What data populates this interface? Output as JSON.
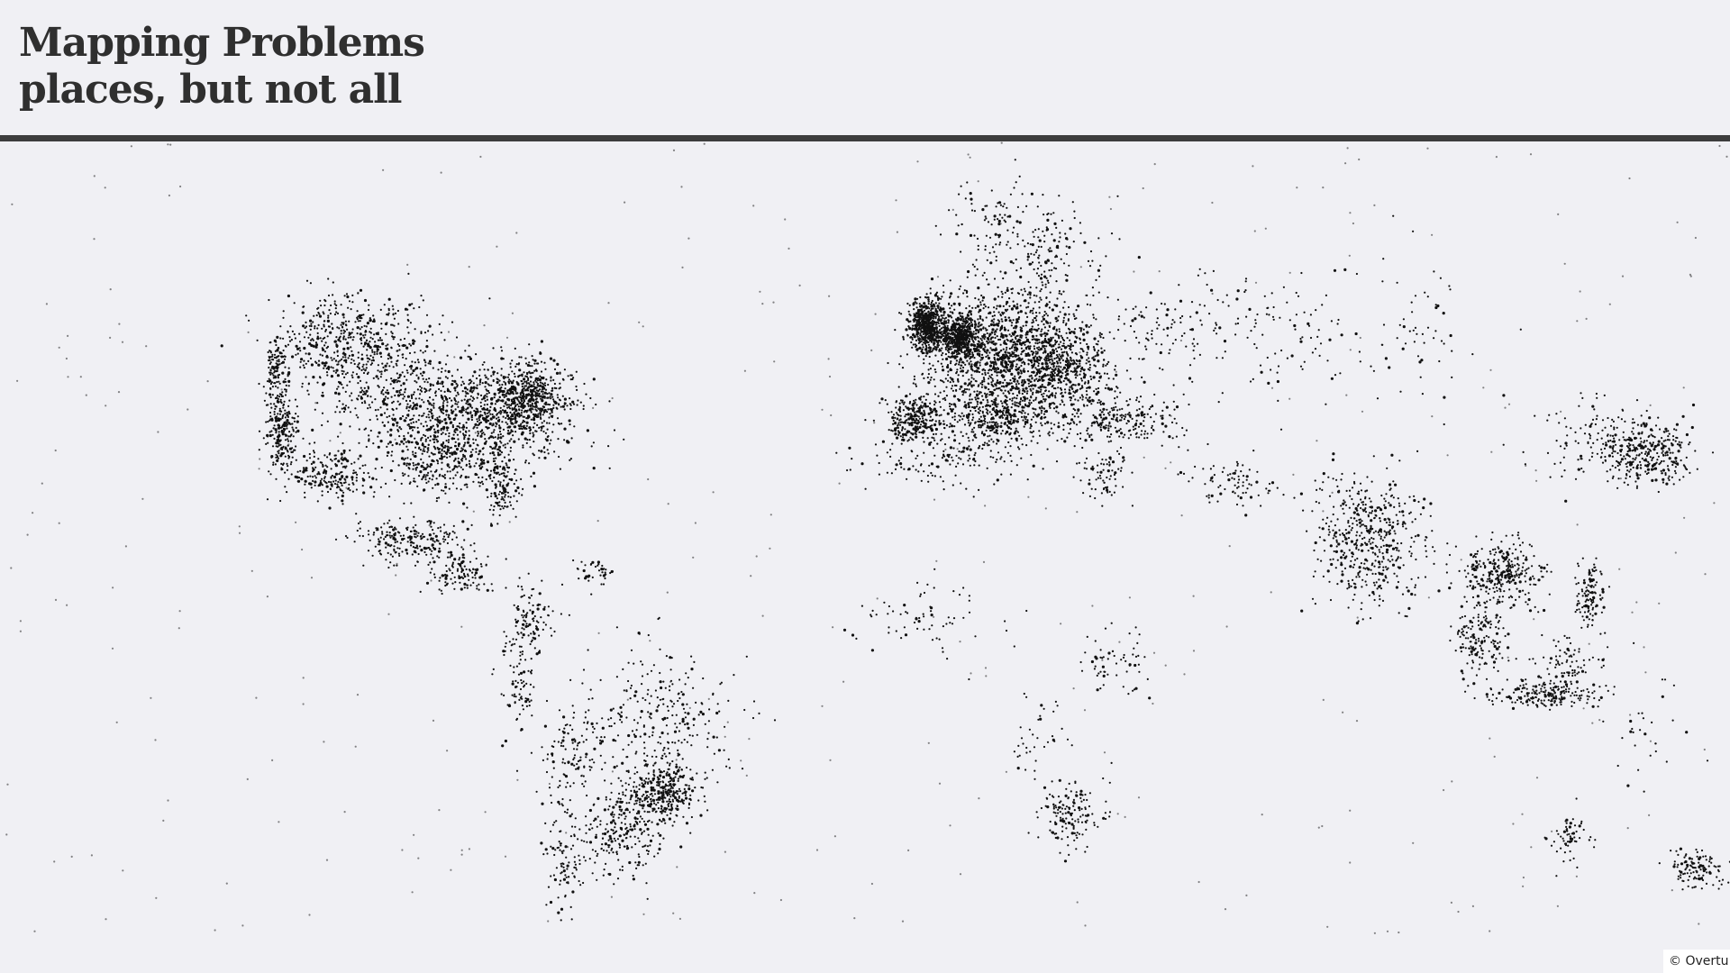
{
  "header": {
    "title_line1": "Mapping Problems",
    "title_line2": "places, but not all"
  },
  "map": {
    "attribution": "© Overtu",
    "point_color": "#111111"
  }
}
